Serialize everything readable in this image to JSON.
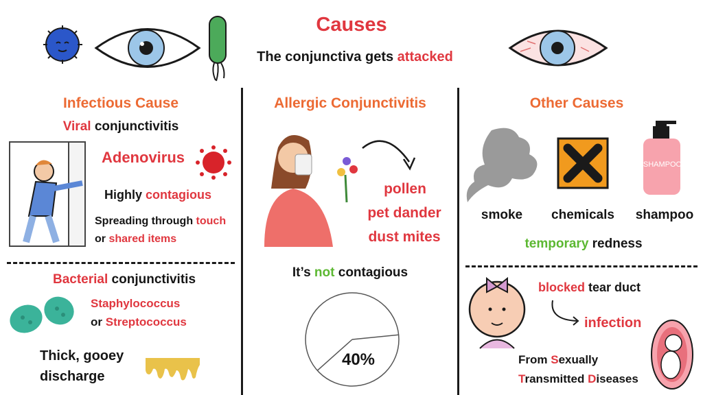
{
  "header": {
    "title": "Causes",
    "subtitle_prefix": "The conjunctiva gets ",
    "subtitle_highlight": "attacked"
  },
  "infectious": {
    "heading": "Infectious Cause",
    "viral_highlight": "Viral",
    "viral_rest": " conjunctivitis",
    "adenovirus": "Adenovirus",
    "highly": "Highly ",
    "contagious": "contagious",
    "spread_prefix": "Spreading through ",
    "spread_touch": "touch",
    "spread_or": "or ",
    "spread_items": "shared items",
    "bacterial_highlight": "Bacterial",
    "bacterial_rest": " conjunctivitis",
    "staph": "Staphylococcus",
    "strep_or": "or ",
    "strep": "Streptococcus",
    "discharge_line1": "Thick, gooey",
    "discharge_line2": "discharge"
  },
  "allergic": {
    "heading": "Allergic Conjunctivitis",
    "allergens": [
      "pollen",
      "pet dander",
      "dust mites"
    ],
    "not_prefix": "It’s ",
    "not_highlight": "not",
    "not_suffix": " contagious",
    "pie": {
      "percent": 40,
      "label": "40%"
    }
  },
  "other": {
    "heading": "Other Causes",
    "items": [
      "smoke",
      "chemicals",
      "shampoo"
    ],
    "bottle_label": "SHAMPOO",
    "temporary_highlight": "temporary",
    "temporary_rest": " redness",
    "blocked_highlight": "blocked",
    "blocked_rest": " tear duct",
    "infection": "infection",
    "std_from": "From ",
    "std_s": "S",
    "std_exually": "exually",
    "std_t": "T",
    "std_ransmitted": "ransmitted ",
    "std_d": "D",
    "std_iseases": "iseases"
  },
  "colors": {
    "red": "#e0373f",
    "orange": "#ec6a33",
    "green": "#5cb832",
    "text": "#151515"
  }
}
